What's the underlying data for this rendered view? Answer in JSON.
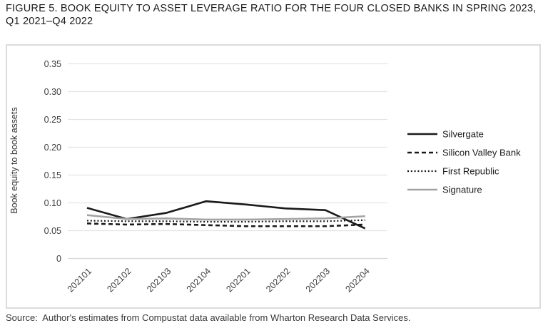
{
  "figure": {
    "title_line1": "FIGURE 5. BOOK EQUITY TO ASSET LEVERAGE RATIO FOR THE FOUR CLOSED BANKS IN SPRING 2023,",
    "title_line2": "Q1 2021–Q4 2022",
    "source": "Source:  Author's estimates from Compustat data available from Wharton Research Data Services."
  },
  "colors": {
    "black_line": "#1a1a1a",
    "gray_line": "#a3a3a3",
    "gridline": "#e3e3e3",
    "baseline": "#d8d8d8",
    "tick_text": "#3d3d3d"
  },
  "chart_data": {
    "type": "line",
    "title": "",
    "xlabel": "",
    "ylabel": "Book equity to book assets",
    "ylim": [
      0,
      0.35
    ],
    "ytick_labels": [
      "0",
      "0.05",
      "0.10",
      "0.15",
      "0.20",
      "0.25",
      "0.30",
      "0.35"
    ],
    "grid": "horizontal",
    "legend_position": "right",
    "categories": [
      "202101",
      "202102",
      "202103",
      "202104",
      "202201",
      "202202",
      "202203",
      "202204"
    ],
    "series": [
      {
        "name": "Silvergate",
        "color": "#1a1a1a",
        "dash": "solid",
        "values": [
          0.091,
          0.071,
          0.082,
          0.103,
          0.097,
          0.09,
          0.087,
          0.054
        ]
      },
      {
        "name": "Silicon Valley Bank",
        "color": "#1a1a1a",
        "dash": "dashed",
        "values": [
          0.063,
          0.061,
          0.062,
          0.06,
          0.058,
          0.058,
          0.058,
          0.061
        ]
      },
      {
        "name": "First Republic",
        "color": "#1a1a1a",
        "dash": "dotted",
        "values": [
          0.068,
          0.067,
          0.067,
          0.066,
          0.066,
          0.067,
          0.067,
          0.069
        ]
      },
      {
        "name": "Signature",
        "color": "#a3a3a3",
        "dash": "solid",
        "values": [
          0.078,
          0.071,
          0.072,
          0.07,
          0.07,
          0.071,
          0.072,
          0.076
        ]
      }
    ]
  }
}
